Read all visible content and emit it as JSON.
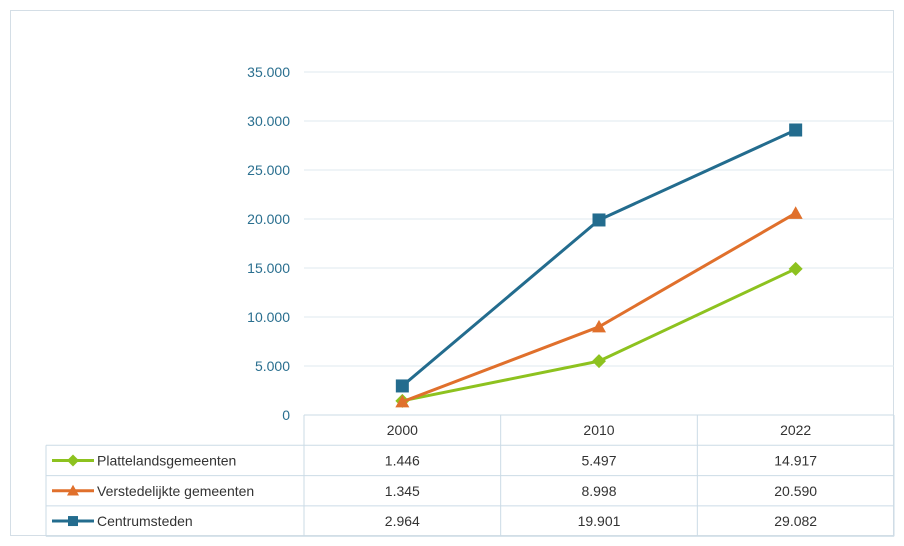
{
  "chart_data": {
    "type": "line",
    "title": "",
    "xlabel": "",
    "ylabel": "",
    "categories": [
      "2000",
      "2010",
      "2022"
    ],
    "ylim": [
      0,
      35000
    ],
    "yticks": [
      0,
      5000,
      10000,
      15000,
      20000,
      25000,
      30000,
      35000
    ],
    "ytick_labels": [
      "0",
      "5.000",
      "10.000",
      "15.000",
      "20.000",
      "25.000",
      "30.000",
      "35.000"
    ],
    "grid": true,
    "legend": "data-table-below",
    "series": [
      {
        "name": "Plattelandsgemeenten",
        "values": [
          1446,
          5497,
          14917
        ],
        "labels": [
          "1.446",
          "5.497",
          "14.917"
        ],
        "color": "#8dc21f",
        "marker": "diamond"
      },
      {
        "name": "Verstedelijkte gemeenten",
        "values": [
          1345,
          8998,
          20590
        ],
        "labels": [
          "1.345",
          "8.998",
          "20.590"
        ],
        "color": "#e0702c",
        "marker": "triangle"
      },
      {
        "name": "Centrumsteden",
        "values": [
          2964,
          19901,
          29082
        ],
        "labels": [
          "2.964",
          "19.901",
          "29.082"
        ],
        "color": "#236c8e",
        "marker": "square"
      }
    ]
  },
  "colors": {
    "axis_text": "#2a6f8f",
    "gridline": "#dfe9ef",
    "table_border": "#cbdbe6",
    "table_text": "#333333"
  }
}
